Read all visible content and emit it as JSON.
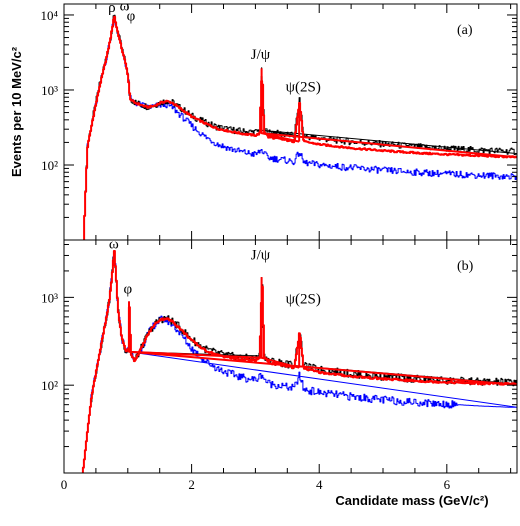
{
  "figure": {
    "ylabel": "Events per 10 MeV/c²",
    "xlabel": "Candidate mass (GeV/c²)"
  },
  "chart_data": [
    {
      "type": "line",
      "panel_label": "(a)",
      "x_ticks": [
        "0",
        "2",
        "4",
        "6"
      ],
      "y_ticks": [
        "10²",
        "10³",
        "10⁴"
      ],
      "y_scale": "log",
      "xlim": [
        0,
        7.1
      ],
      "ylim": [
        10,
        14000
      ],
      "colors": {
        "black": "#000000",
        "red": "#ff0000",
        "blue": "#0000ff"
      },
      "annotations": [
        {
          "text": "ρ",
          "x": 0.75,
          "y": 11000
        },
        {
          "text": "ω",
          "x": 0.95,
          "y": 11500
        },
        {
          "text": "φ",
          "x": 1.05,
          "y": 8500
        },
        {
          "text": "J/ψ",
          "x": 3.08,
          "y": 2600
        },
        {
          "text": "ψ(2S)",
          "x": 3.75,
          "y": 950
        }
      ],
      "series": [
        {
          "color": "black",
          "x": [
            0.3,
            0.36,
            0.45,
            0.55,
            0.65,
            0.7,
            0.75,
            0.78,
            0.82,
            0.9,
            0.98,
            1.01,
            1.02,
            1.04,
            1.1,
            1.2,
            1.3,
            1.4,
            1.5,
            1.6,
            1.7,
            1.8,
            1.9,
            2.0,
            2.2,
            2.4,
            2.6,
            2.8,
            3.0,
            3.06,
            3.097,
            3.13,
            3.2,
            3.4,
            3.6,
            3.686,
            3.75,
            4.0,
            4.5,
            5.0,
            5.5,
            6.0,
            6.5,
            7.0,
            7.1
          ],
          "y": [
            10,
            180,
            450,
            1150,
            2600,
            4000,
            6800,
            10000,
            6800,
            3600,
            1900,
            1150,
            900,
            750,
            690,
            640,
            600,
            620,
            680,
            720,
            680,
            590,
            520,
            450,
            370,
            320,
            295,
            280,
            275,
            290,
            2000,
            300,
            270,
            260,
            245,
            720,
            245,
            225,
            205,
            190,
            175,
            165,
            158,
            152,
            150
          ]
        },
        {
          "color": "red",
          "x": [
            0.3,
            0.36,
            0.45,
            0.55,
            0.65,
            0.7,
            0.75,
            0.78,
            0.82,
            0.9,
            0.98,
            1.01,
            1.02,
            1.04,
            1.1,
            1.2,
            1.3,
            1.4,
            1.5,
            1.6,
            1.7,
            1.8,
            1.9,
            2.0,
            2.2,
            2.4,
            2.6,
            2.8,
            3.0,
            3.06,
            3.097,
            3.13,
            3.2,
            3.4,
            3.6,
            3.686,
            3.75,
            4.0,
            4.5,
            5.0,
            5.5,
            6.0,
            6.5,
            7.0,
            7.1
          ],
          "y": [
            10,
            170,
            430,
            1100,
            2500,
            3900,
            6700,
            10000,
            6700,
            3500,
            1900,
            1150,
            900,
            740,
            680,
            630,
            590,
            610,
            670,
            710,
            670,
            580,
            505,
            440,
            360,
            305,
            280,
            260,
            248,
            265,
            1950,
            280,
            235,
            220,
            205,
            680,
            205,
            188,
            168,
            155,
            145,
            138,
            133,
            128,
            127
          ]
        },
        {
          "color": "blue",
          "x": [
            0.3,
            0.36,
            0.45,
            0.55,
            0.65,
            0.7,
            0.75,
            0.78,
            0.82,
            0.9,
            0.98,
            1.01,
            1.02,
            1.04,
            1.1,
            1.2,
            1.3,
            1.4,
            1.5,
            1.6,
            1.7,
            1.8,
            1.9,
            2.0,
            2.2,
            2.4,
            2.6,
            2.8,
            3.0,
            3.06,
            3.097,
            3.13,
            3.2,
            3.4,
            3.6,
            3.686,
            3.75,
            4.0,
            4.5,
            5.0,
            5.5,
            6.0,
            6.5,
            7.0,
            7.1
          ],
          "y": [
            10,
            170,
            430,
            1100,
            2500,
            3900,
            6700,
            10000,
            6700,
            3500,
            1900,
            1150,
            900,
            740,
            680,
            630,
            590,
            600,
            630,
            640,
            580,
            480,
            400,
            330,
            240,
            190,
            165,
            148,
            138,
            150,
            160,
            140,
            125,
            118,
            110,
            150,
            108,
            100,
            92,
            85,
            80,
            76,
            73,
            70,
            70
          ]
        }
      ]
    },
    {
      "type": "line",
      "panel_label": "(b)",
      "x_ticks": [
        "0",
        "2",
        "4",
        "6"
      ],
      "y_ticks": [
        "10²",
        "10³"
      ],
      "y_scale": "log",
      "xlim": [
        0,
        7.1
      ],
      "ylim": [
        10,
        4500
      ],
      "colors": {
        "black": "#000000",
        "red": "#ff0000",
        "blue": "#0000ff"
      },
      "annotations": [
        {
          "text": "ω",
          "x": 0.78,
          "y": 3600
        },
        {
          "text": "φ",
          "x": 1.0,
          "y": 1100
        },
        {
          "text": "J/ψ",
          "x": 3.08,
          "y": 2700
        },
        {
          "text": "ψ(2S)",
          "x": 3.75,
          "y": 850
        }
      ],
      "series": [
        {
          "color": "black",
          "x": [
            0.28,
            0.3,
            0.36,
            0.42,
            0.5,
            0.58,
            0.65,
            0.7,
            0.74,
            0.76,
            0.78,
            0.8,
            0.84,
            0.9,
            0.96,
            1.0,
            1.019,
            1.04,
            1.1,
            1.2,
            1.3,
            1.4,
            1.5,
            1.6,
            1.7,
            1.8,
            1.9,
            2.0,
            2.2,
            2.4,
            2.6,
            2.8,
            3.0,
            3.06,
            3.097,
            3.13,
            3.2,
            3.4,
            3.6,
            3.686,
            3.75,
            4.0,
            4.5,
            5.0,
            5.5,
            6.0,
            6.5,
            7.0,
            7.1
          ],
          "y": [
            10,
            12,
            30,
            70,
            150,
            300,
            550,
            900,
            1600,
            2400,
            3400,
            2200,
            700,
            340,
            250,
            240,
            900,
            230,
            190,
            260,
            370,
            480,
            560,
            580,
            530,
            460,
            390,
            330,
            260,
            230,
            215,
            205,
            200,
            215,
            1700,
            220,
            190,
            180,
            168,
            420,
            165,
            150,
            135,
            125,
            118,
            113,
            110,
            108,
            108
          ]
        },
        {
          "color": "red",
          "x": [
            0.28,
            0.3,
            0.36,
            0.42,
            0.5,
            0.58,
            0.65,
            0.7,
            0.74,
            0.76,
            0.78,
            0.8,
            0.84,
            0.9,
            0.96,
            1.0,
            1.019,
            1.04,
            1.1,
            1.2,
            1.3,
            1.4,
            1.5,
            1.6,
            1.7,
            1.8,
            1.9,
            2.0,
            2.2,
            2.4,
            2.6,
            2.8,
            3.0,
            3.06,
            3.097,
            3.13,
            3.2,
            3.4,
            3.6,
            3.686,
            3.75,
            4.0,
            4.5,
            5.0,
            5.5,
            6.0,
            6.5,
            7.0,
            7.1
          ],
          "y": [
            10,
            12,
            30,
            70,
            150,
            300,
            550,
            900,
            1600,
            2400,
            3400,
            2200,
            700,
            340,
            250,
            240,
            900,
            230,
            190,
            260,
            370,
            480,
            560,
            575,
            525,
            450,
            380,
            320,
            250,
            220,
            205,
            195,
            190,
            205,
            1700,
            210,
            180,
            170,
            158,
            400,
            155,
            140,
            126,
            118,
            112,
            108,
            105,
            103,
            103
          ]
        },
        {
          "color": "blue",
          "x": [
            0.28,
            0.3,
            0.36,
            0.42,
            0.5,
            0.58,
            0.65,
            0.7,
            0.74,
            0.76,
            0.78,
            0.8,
            0.84,
            0.9,
            0.96,
            1.0,
            1.019,
            1.04,
            1.1,
            1.2,
            1.3,
            1.4,
            1.5,
            1.6,
            1.7,
            1.8,
            1.9,
            2.0,
            2.2,
            2.4,
            2.6,
            2.8,
            3.0,
            3.06,
            3.097,
            3.13,
            3.2,
            3.4,
            3.6,
            3.686,
            3.75,
            4.0,
            4.5,
            5.0,
            5.5,
            6.0,
            6.5,
            7.0,
            7.1
          ],
          "y": [
            10,
            12,
            30,
            70,
            150,
            300,
            550,
            900,
            1600,
            2400,
            3400,
            2200,
            700,
            340,
            250,
            240,
            900,
            230,
            190,
            260,
            370,
            480,
            555,
            555,
            490,
            400,
            320,
            260,
            190,
            155,
            135,
            122,
            115,
            125,
            135,
            118,
            105,
            98,
            92,
            130,
            90,
            82,
            74,
            68,
            64,
            61,
            58,
            56,
            56
          ]
        }
      ]
    }
  ]
}
